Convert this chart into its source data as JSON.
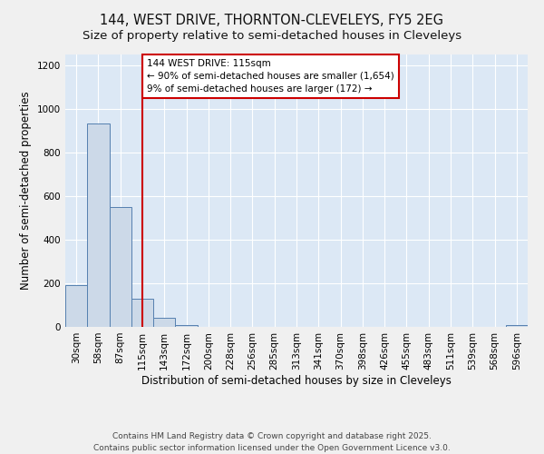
{
  "title_line1": "144, WEST DRIVE, THORNTON-CLEVELEYS, FY5 2EG",
  "title_line2": "Size of property relative to semi-detached houses in Cleveleys",
  "xlabel": "Distribution of semi-detached houses by size in Cleveleys",
  "ylabel": "Number of semi-detached properties",
  "categories": [
    "30sqm",
    "58sqm",
    "87sqm",
    "115sqm",
    "143sqm",
    "172sqm",
    "200sqm",
    "228sqm",
    "256sqm",
    "285sqm",
    "313sqm",
    "341sqm",
    "370sqm",
    "398sqm",
    "426sqm",
    "455sqm",
    "483sqm",
    "511sqm",
    "539sqm",
    "568sqm",
    "596sqm"
  ],
  "values": [
    192,
    935,
    549,
    130,
    40,
    10,
    0,
    0,
    0,
    0,
    0,
    0,
    0,
    0,
    0,
    0,
    0,
    0,
    0,
    0,
    10
  ],
  "bar_color": "#ccd9e8",
  "bar_edge_color": "#5580b0",
  "vline_x_index": 3,
  "vline_color": "#cc0000",
  "annotation_text": "144 WEST DRIVE: 115sqm\n← 90% of semi-detached houses are smaller (1,654)\n9% of semi-detached houses are larger (172) →",
  "annotation_box_color": "#cc0000",
  "ylim": [
    0,
    1250
  ],
  "yticks": [
    0,
    200,
    400,
    600,
    800,
    1000,
    1200
  ],
  "footer_line1": "Contains HM Land Registry data © Crown copyright and database right 2025.",
  "footer_line2": "Contains public sector information licensed under the Open Government Licence v3.0.",
  "bg_color": "#dce8f5",
  "grid_color": "#ffffff",
  "fig_bg_color": "#f0f0f0",
  "title_fontsize": 10.5,
  "subtitle_fontsize": 9.5,
  "axis_label_fontsize": 8.5,
  "tick_fontsize": 7.5,
  "annotation_fontsize": 7.5,
  "footer_fontsize": 6.5
}
